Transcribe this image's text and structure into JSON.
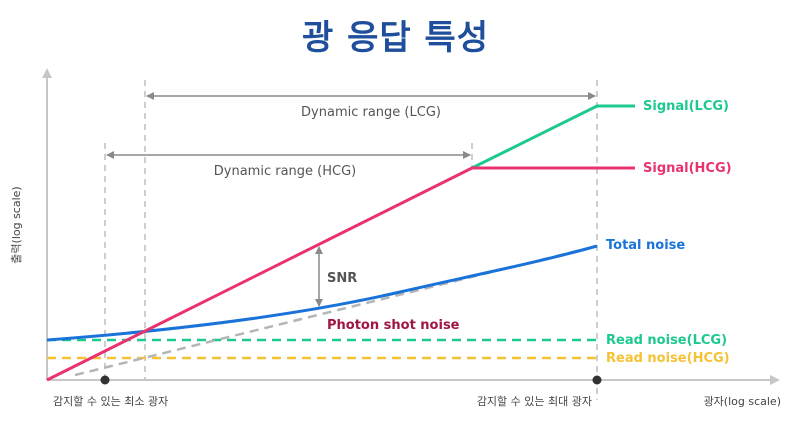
{
  "title": "광 응답 특성",
  "axes": {
    "x_label": "광자(log scale)",
    "y_label": "출력(log scale)",
    "x_tick_min": "감지할 수 있는 최소 광자",
    "x_tick_max": "감지할 수 있는 최대 광자"
  },
  "ranges": {
    "lcg": "Dynamic range (LCG)",
    "hcg": "Dynamic range (HCG)"
  },
  "annotations": {
    "snr": "SNR",
    "photon_shot_noise": "Photon shot noise"
  },
  "curves": {
    "signal_lcg": {
      "label": "Signal(LCG)",
      "color": "#1ec98f"
    },
    "signal_hcg": {
      "label": "Signal(HCG)",
      "color": "#e8336d"
    },
    "total_noise": {
      "label": "Total noise",
      "color": "#1a73d8"
    },
    "read_noise_lcg": {
      "label": "Read noise(LCG)",
      "color": "#1ec98f"
    },
    "read_noise_hcg": {
      "label": "Read noise(HCG)",
      "color": "#f5c234"
    },
    "photon_shot_noise": {
      "color": "#b5b5b5"
    },
    "photon_shot_noise_label": {
      "color": "#a01642"
    }
  }
}
